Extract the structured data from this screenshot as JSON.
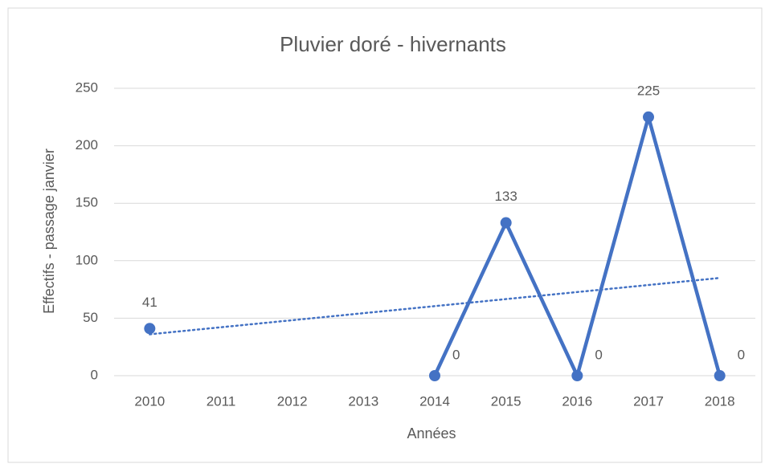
{
  "chart_data": {
    "type": "line",
    "title": "Pluvier doré - hivernants",
    "x_label": "Années",
    "y_label": "Effectifs - passage janvier",
    "categories": [
      "2010",
      "2011",
      "2012",
      "2013",
      "2014",
      "2015",
      "2016",
      "2017",
      "2018"
    ],
    "series": [
      {
        "name": "Effectifs",
        "color": "#4472c4",
        "values": [
          41,
          null,
          null,
          null,
          0,
          133,
          0,
          225,
          0
        ]
      }
    ],
    "trendline": {
      "color": "#4472c4",
      "values": [
        36,
        85
      ]
    },
    "ylim": [
      0,
      250
    ],
    "yticks": [
      0,
      50,
      100,
      150,
      200,
      250
    ],
    "grid": true
  }
}
